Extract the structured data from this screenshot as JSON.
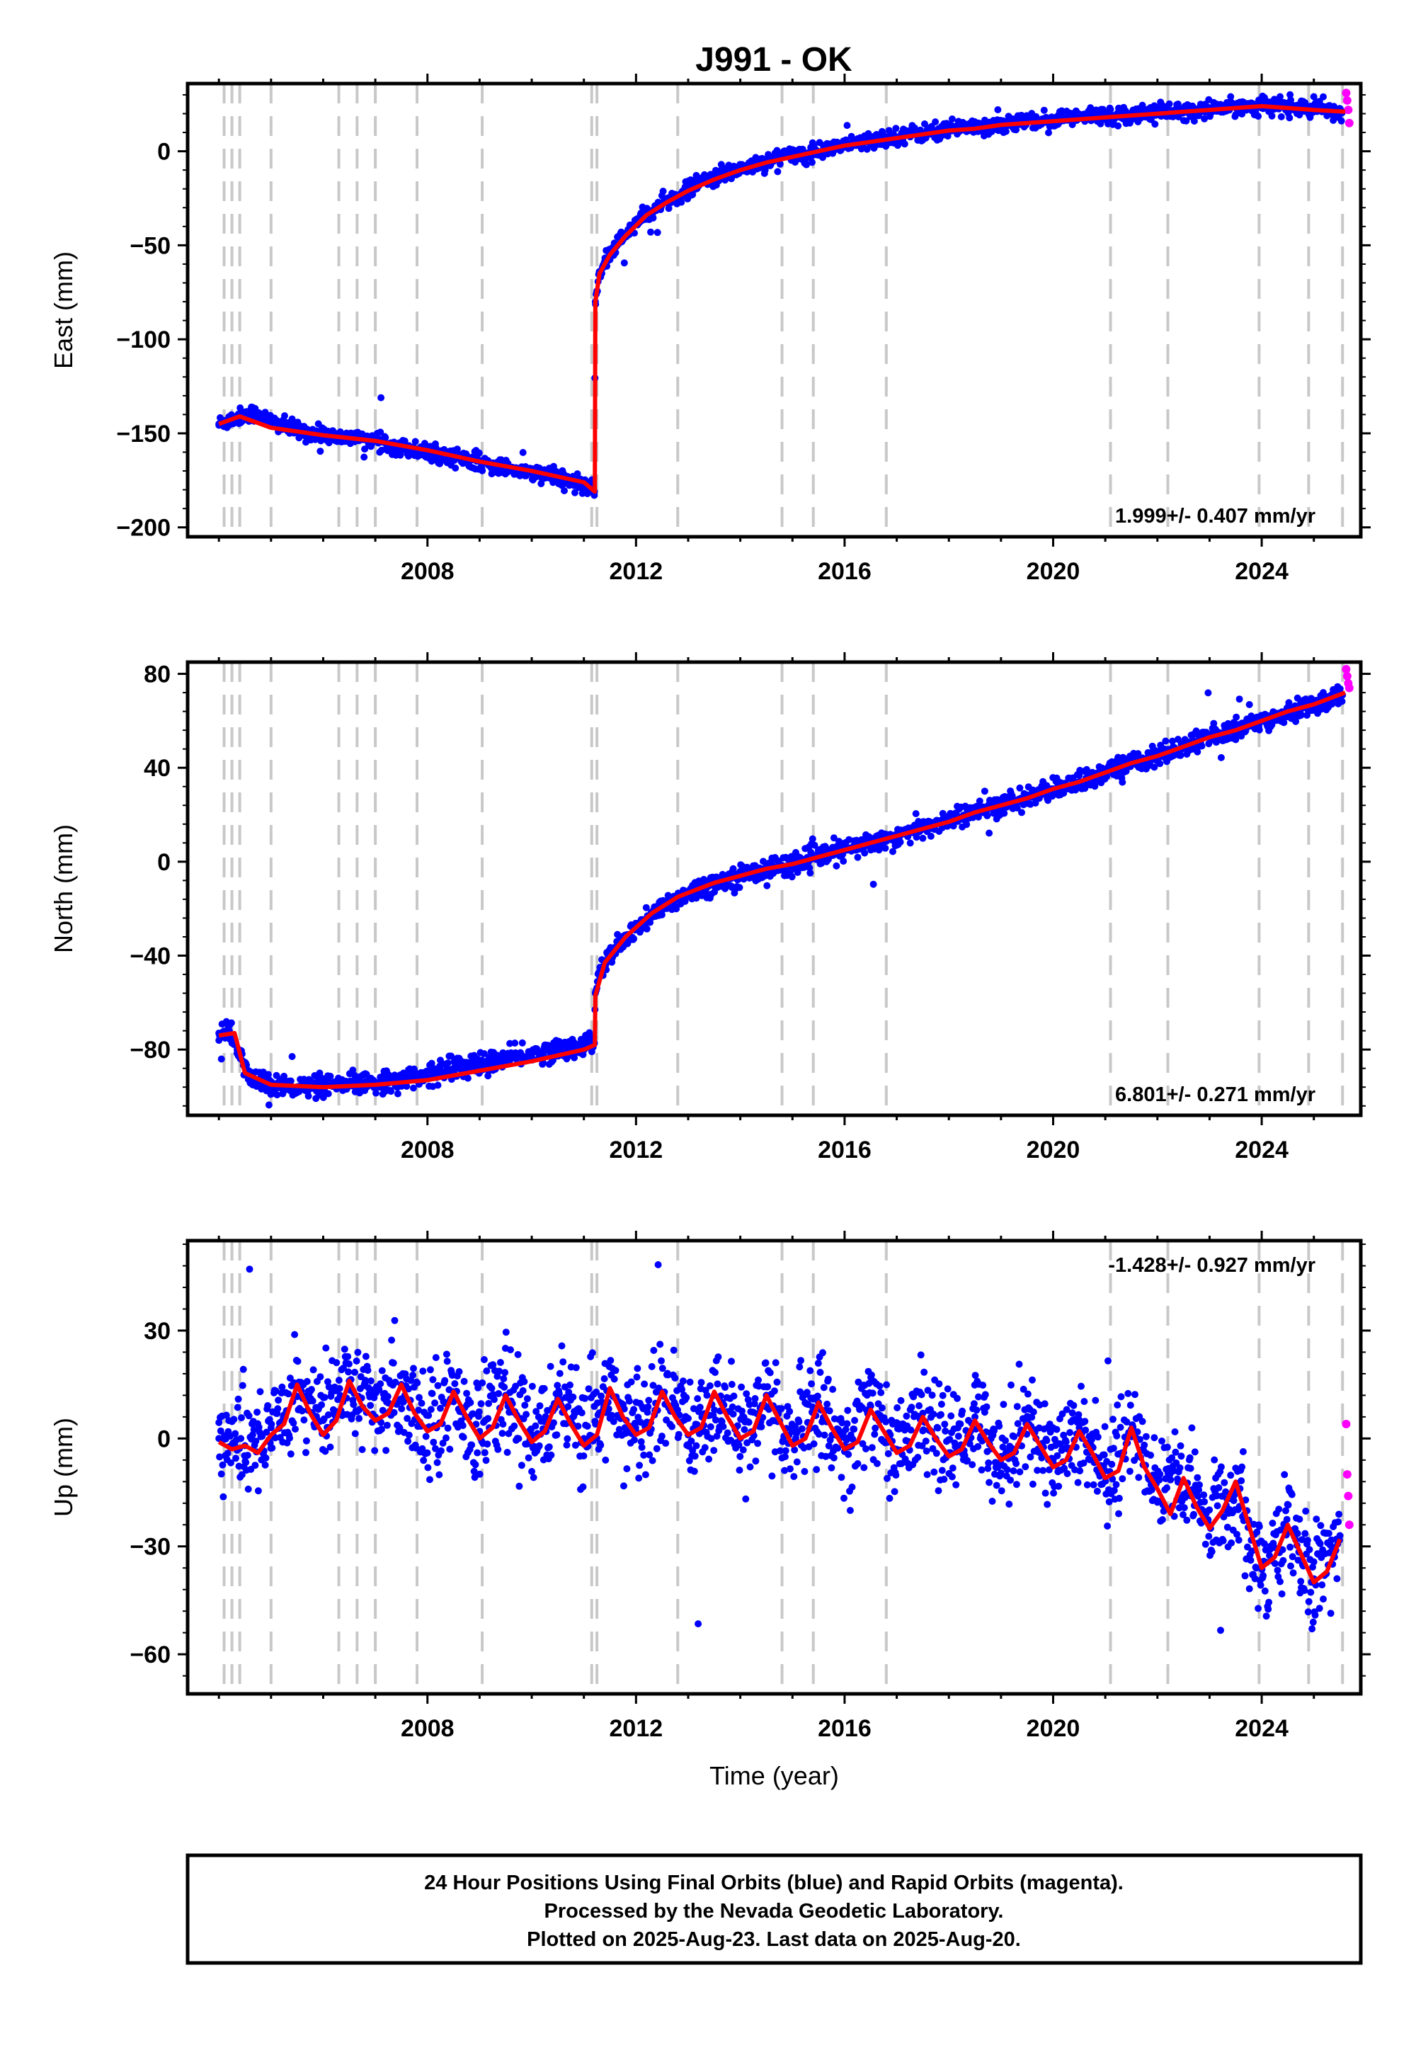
{
  "title": "J991 - OK",
  "colors": {
    "final": "#0000ff",
    "rapid": "#ff00ff",
    "model": "#ff0000",
    "event": "#c8c8c8"
  },
  "footer": {
    "line1": "24 Hour Positions Using Final Orbits (blue) and Rapid Orbits (magenta).",
    "line2": "Processed by the Nevada Geodetic Laboratory.",
    "line3": "Plotted on 2025-Aug-23. Last data on 2025-Aug-20."
  },
  "chart_data": [
    {
      "type": "scatter",
      "ylabel": "East (mm)",
      "xlabel": "",
      "xlim": [
        2003.4,
        2025.9
      ],
      "ylim": [
        -205,
        36
      ],
      "xticks": [
        "2008",
        "2012",
        "2016",
        "2020",
        "2024"
      ],
      "yticks": [
        "0",
        "−50",
        "−100",
        "−150",
        "−200"
      ],
      "rate": "1.999+/- 0.407 mm/yr",
      "events": [
        2004.1,
        2004.25,
        2004.4,
        2005.0,
        2006.3,
        2006.65,
        2007.0,
        2007.8,
        2009.05,
        2011.15,
        2011.25,
        2012.8,
        2014.8,
        2015.4,
        2016.8,
        2021.1,
        2022.2,
        2023.95,
        2024.9,
        2025.55
      ],
      "series": [
        {
          "name": "Final Orbits",
          "color": "blue",
          "x": [
            2004.0,
            2004.2,
            2004.4,
            2004.6,
            2004.8,
            2005.2,
            2005.6,
            2006.0,
            2006.4,
            2006.8,
            2007.2,
            2007.6,
            2008.0,
            2008.4,
            2008.8,
            2009.2,
            2009.6,
            2010.0,
            2010.4,
            2010.8,
            2011.1,
            2011.2,
            2011.22,
            2011.3,
            2011.5,
            2011.7,
            2012.0,
            2012.4,
            2012.8,
            2013.2,
            2013.6,
            2014.0,
            2014.4,
            2014.8,
            2015.2,
            2015.6,
            2016.0,
            2016.4,
            2016.8,
            2017.2,
            2017.6,
            2018.0,
            2018.4,
            2018.8,
            2019.2,
            2019.6,
            2020.0,
            2020.4,
            2020.8,
            2021.2,
            2021.6,
            2022.0,
            2022.4,
            2022.8,
            2023.2,
            2023.6,
            2024.0,
            2024.4,
            2024.8,
            2025.2,
            2025.55
          ],
          "y": [
            -145,
            -143,
            -141,
            -139,
            -141,
            -146,
            -149,
            -151,
            -152,
            -153,
            -155,
            -158,
            -160,
            -162,
            -164,
            -167,
            -169,
            -171,
            -173,
            -176,
            -179,
            -181,
            -80,
            -64,
            -55,
            -47,
            -38,
            -30,
            -24,
            -17,
            -13,
            -9,
            -6,
            -3,
            -1,
            1,
            3,
            5,
            7,
            9,
            10,
            12,
            13,
            14,
            15,
            16,
            17,
            18,
            19,
            19,
            20,
            21,
            21,
            22,
            23,
            24,
            24,
            24,
            23,
            22,
            21
          ]
        },
        {
          "name": "Rapid Orbits",
          "color": "magenta",
          "x": [
            2025.62,
            2025.64,
            2025.66,
            2025.68
          ],
          "y": [
            31,
            27,
            22,
            15
          ]
        },
        {
          "name": "model",
          "color": "red",
          "x": [
            2004.0,
            2004.4,
            2005.0,
            2006.0,
            2007.0,
            2008.0,
            2009.0,
            2010.0,
            2011.0,
            2011.21,
            2011.22,
            2011.3,
            2011.5,
            2011.8,
            2012.2,
            2012.6,
            2013.0,
            2013.5,
            2014.0,
            2014.5,
            2015.0,
            2015.5,
            2016.0,
            2016.5,
            2017.0,
            2017.5,
            2018.0,
            2018.5,
            2019.0,
            2019.5,
            2020.0,
            2020.5,
            2021.0,
            2021.5,
            2022.0,
            2022.5,
            2023.0,
            2023.5,
            2024.0,
            2024.5,
            2025.0,
            2025.6
          ],
          "y": [
            -145,
            -141,
            -147,
            -151,
            -154,
            -159,
            -165,
            -170,
            -176,
            -181,
            -80,
            -65,
            -55,
            -45,
            -34,
            -27,
            -21,
            -15,
            -10,
            -6,
            -3,
            0,
            3,
            5,
            7,
            9,
            11,
            12,
            14,
            15,
            16,
            17,
            18,
            19,
            20,
            21,
            22,
            23,
            24,
            23,
            22,
            21
          ]
        }
      ]
    },
    {
      "type": "scatter",
      "ylabel": "North (mm)",
      "xlabel": "",
      "xlim": [
        2003.4,
        2025.9
      ],
      "ylim": [
        -108,
        85
      ],
      "xticks": [
        "2008",
        "2012",
        "2016",
        "2020",
        "2024"
      ],
      "yticks": [
        "80",
        "40",
        "0",
        "−40",
        "−80"
      ],
      "rate": "6.801+/- 0.271 mm/yr",
      "events": [
        2004.1,
        2004.25,
        2004.4,
        2005.0,
        2006.3,
        2006.65,
        2007.0,
        2007.8,
        2009.05,
        2011.15,
        2011.25,
        2012.8,
        2014.8,
        2015.4,
        2016.8,
        2021.1,
        2022.2,
        2023.95,
        2024.9,
        2025.55
      ],
      "series": [
        {
          "name": "Final Orbits",
          "color": "blue",
          "x": [
            2004.0,
            2004.2,
            2004.35,
            2004.6,
            2005.0,
            2005.5,
            2006.0,
            2006.5,
            2007.0,
            2007.5,
            2008.0,
            2008.5,
            2009.0,
            2009.5,
            2010.0,
            2010.5,
            2011.0,
            2011.2,
            2011.22,
            2011.3,
            2011.5,
            2011.8,
            2012.2,
            2012.6,
            2013.0,
            2013.5,
            2014.0,
            2014.5,
            2015.0,
            2015.5,
            2016.0,
            2016.5,
            2017.0,
            2017.5,
            2018.0,
            2018.5,
            2019.0,
            2019.5,
            2020.0,
            2020.5,
            2021.0,
            2021.5,
            2022.0,
            2022.5,
            2023.0,
            2023.5,
            2024.0,
            2024.5,
            2025.0,
            2025.55
          ],
          "y": [
            -73,
            -72,
            -80,
            -92,
            -95,
            -96,
            -96,
            -95,
            -94,
            -93,
            -91,
            -88,
            -86,
            -84,
            -82,
            -80,
            -78,
            -77,
            -56,
            -47,
            -40,
            -33,
            -25,
            -18,
            -13,
            -9,
            -6,
            -3,
            -1,
            2,
            5,
            8,
            11,
            14,
            18,
            21,
            24,
            27,
            31,
            34,
            38,
            42,
            45,
            49,
            53,
            56,
            60,
            64,
            67,
            71
          ]
        },
        {
          "name": "Rapid Orbits",
          "color": "magenta",
          "x": [
            2025.62,
            2025.64,
            2025.66,
            2025.68
          ],
          "y": [
            82,
            79,
            76,
            74
          ]
        },
        {
          "name": "model",
          "color": "red",
          "x": [
            2004.0,
            2004.3,
            2004.5,
            2005.0,
            2006.0,
            2007.0,
            2008.0,
            2009.0,
            2010.0,
            2011.0,
            2011.21,
            2011.22,
            2011.4,
            2011.8,
            2012.3,
            2012.8,
            2013.5,
            2014.0,
            2014.5,
            2015.0,
            2015.5,
            2016.0,
            2016.5,
            2017.0,
            2017.5,
            2018.0,
            2018.5,
            2019.0,
            2019.5,
            2020.0,
            2020.5,
            2021.0,
            2021.5,
            2022.0,
            2022.5,
            2023.0,
            2023.5,
            2024.0,
            2024.5,
            2025.0,
            2025.6
          ],
          "y": [
            -74,
            -73,
            -90,
            -95,
            -96,
            -95,
            -93,
            -89,
            -85,
            -80,
            -78,
            -57,
            -43,
            -32,
            -22,
            -15,
            -9,
            -6,
            -3,
            -1,
            2,
            5,
            8,
            11,
            14,
            17,
            21,
            24,
            27,
            31,
            34,
            38,
            42,
            45,
            49,
            53,
            56,
            60,
            64,
            67,
            72
          ]
        }
      ]
    },
    {
      "type": "scatter",
      "ylabel": "Up (mm)",
      "xlabel": "Time (year)",
      "xlim": [
        2003.4,
        2025.9
      ],
      "ylim": [
        -71,
        55
      ],
      "xticks": [
        "2008",
        "2012",
        "2016",
        "2020",
        "2024"
      ],
      "yticks": [
        "30",
        "0",
        "−30",
        "−60"
      ],
      "rate": "-1.428+/- 0.927 mm/yr",
      "events": [
        2004.1,
        2004.25,
        2004.4,
        2005.0,
        2006.3,
        2006.65,
        2007.0,
        2007.8,
        2009.05,
        2011.15,
        2011.25,
        2012.8,
        2014.8,
        2015.4,
        2016.8,
        2021.1,
        2022.2,
        2023.95,
        2024.9,
        2025.55
      ],
      "series": [
        {
          "name": "Final Orbits",
          "color": "blue",
          "x": [
            2004.0,
            2004.5,
            2005.0,
            2005.5,
            2006.0,
            2006.5,
            2007.0,
            2007.5,
            2008.0,
            2008.5,
            2009.0,
            2009.5,
            2010.0,
            2010.5,
            2011.0,
            2011.5,
            2012.0,
            2012.5,
            2013.0,
            2013.5,
            2014.0,
            2014.5,
            2015.0,
            2015.5,
            2016.0,
            2016.5,
            2017.0,
            2017.5,
            2018.0,
            2018.5,
            2019.0,
            2019.5,
            2020.0,
            2020.5,
            2021.0,
            2021.5,
            2022.0,
            2022.5,
            2023.0,
            2023.5,
            2024.0,
            2024.5,
            2025.0,
            2025.5
          ],
          "y": [
            0,
            -2,
            3,
            14,
            5,
            16,
            6,
            15,
            3,
            13,
            2,
            12,
            1,
            11,
            0,
            13,
            2,
            12,
            1,
            12,
            0,
            12,
            -1,
            10,
            -2,
            9,
            -3,
            7,
            -4,
            6,
            -5,
            5,
            -6,
            3,
            -9,
            2,
            -10,
            -12,
            -24,
            -14,
            -36,
            -26,
            -39,
            -27
          ]
        },
        {
          "name": "Rapid Orbits",
          "color": "magenta",
          "x": [
            2025.62,
            2025.64,
            2025.66,
            2025.68
          ],
          "y": [
            4,
            -10,
            -16,
            -24
          ]
        },
        {
          "name": "model",
          "color": "red",
          "x": [
            2004.0,
            2004.25,
            2004.5,
            2004.75,
            2005.0,
            2005.25,
            2005.5,
            2005.75,
            2006.0,
            2006.25,
            2006.5,
            2006.75,
            2007.0,
            2007.25,
            2007.5,
            2007.75,
            2008.0,
            2008.25,
            2008.5,
            2008.75,
            2009.0,
            2009.25,
            2009.5,
            2009.75,
            2010.0,
            2010.25,
            2010.5,
            2010.75,
            2011.0,
            2011.25,
            2011.5,
            2011.75,
            2012.0,
            2012.25,
            2012.5,
            2012.75,
            2013.0,
            2013.25,
            2013.5,
            2013.75,
            2014.0,
            2014.25,
            2014.5,
            2014.75,
            2015.0,
            2015.25,
            2015.5,
            2015.75,
            2016.0,
            2016.25,
            2016.5,
            2016.75,
            2017.0,
            2017.25,
            2017.5,
            2017.75,
            2018.0,
            2018.25,
            2018.5,
            2018.75,
            2019.0,
            2019.25,
            2019.5,
            2019.75,
            2020.0,
            2020.25,
            2020.5,
            2020.75,
            2021.0,
            2021.25,
            2021.5,
            2021.75,
            2022.0,
            2022.25,
            2022.5,
            2022.75,
            2023.0,
            2023.25,
            2023.5,
            2023.75,
            2024.0,
            2024.25,
            2024.5,
            2024.75,
            2025.0,
            2025.25,
            2025.5
          ],
          "y": [
            -1,
            -3,
            -2,
            -4,
            1,
            4,
            15,
            7,
            1,
            5,
            16,
            9,
            5,
            7,
            15,
            7,
            2,
            4,
            13,
            6,
            0,
            3,
            12,
            5,
            -1,
            2,
            11,
            4,
            -2,
            1,
            14,
            6,
            1,
            3,
            13,
            6,
            1,
            3,
            13,
            6,
            0,
            2,
            12,
            5,
            -2,
            0,
            10,
            3,
            -3,
            -1,
            8,
            2,
            -4,
            -2,
            6,
            0,
            -5,
            -3,
            5,
            -1,
            -6,
            -4,
            4,
            -2,
            -8,
            -6,
            2,
            -4,
            -11,
            -9,
            3,
            -8,
            -14,
            -21,
            -11,
            -19,
            -25,
            -20,
            -12,
            -24,
            -36,
            -33,
            -24,
            -32,
            -40,
            -37,
            -28
          ]
        }
      ]
    }
  ]
}
